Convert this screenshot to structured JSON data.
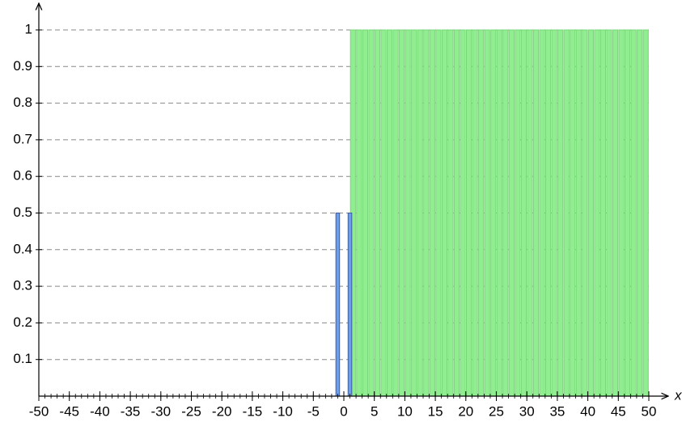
{
  "chart_data": {
    "type": "bar",
    "x_label": "x",
    "xlim": [
      -50,
      50
    ],
    "xticks": [
      -50,
      -45,
      -40,
      -35,
      -30,
      -25,
      -20,
      -15,
      -10,
      -5,
      0,
      5,
      10,
      15,
      20,
      25,
      30,
      35,
      40,
      45,
      50
    ],
    "ylim": [
      0,
      1
    ],
    "yticks": [
      0.1,
      0.2,
      0.3,
      0.4,
      0.5,
      0.6,
      0.7,
      0.8,
      0.9,
      1
    ],
    "grid": true,
    "series": [
      {
        "color": "#90ee90",
        "stroke": "#78d878",
        "align": "edge",
        "x": [
          1,
          2,
          3,
          4,
          5,
          6,
          7,
          8,
          9,
          10,
          11,
          12,
          13,
          14,
          15,
          16,
          17,
          18,
          19,
          20,
          21,
          22,
          23,
          24,
          25,
          26,
          27,
          28,
          29,
          30,
          31,
          32,
          33,
          34,
          35,
          36,
          37,
          38,
          39,
          40,
          41,
          42,
          43,
          44,
          45,
          46,
          47,
          48,
          49
        ],
        "values": [
          1,
          1,
          1,
          1,
          1,
          1,
          1,
          1,
          1,
          1,
          1,
          1,
          1,
          1,
          1,
          1,
          1,
          1,
          1,
          1,
          1,
          1,
          1,
          1,
          1,
          1,
          1,
          1,
          1,
          1,
          1,
          1,
          1,
          1,
          1,
          1,
          1,
          1,
          1,
          1,
          1,
          1,
          1,
          1,
          1,
          1,
          1,
          1,
          1
        ]
      },
      {
        "color": "#6d9eeb",
        "stroke": "#3d5f99",
        "align": "center",
        "x": [
          -1,
          1
        ],
        "values": [
          0.5,
          0.5
        ]
      }
    ]
  }
}
